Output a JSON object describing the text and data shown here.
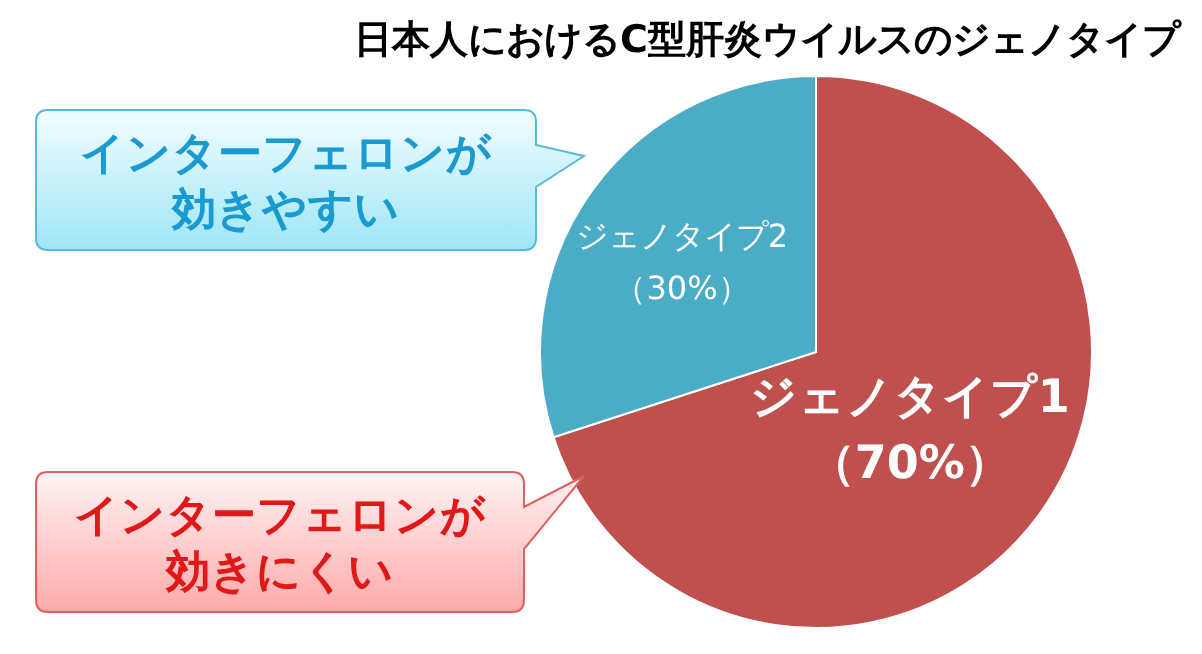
{
  "chart_data": {
    "type": "pie",
    "title": "日本人におけるC型肝炎ウイルスのジェノタイプ",
    "categories": [
      "ジェノタイプ1",
      "ジェノタイプ2"
    ],
    "values": [
      70,
      30
    ],
    "colors": [
      "#c0504d",
      "#4bacc6"
    ],
    "value_labels": [
      "（70%）",
      "（30%）"
    ],
    "annotations": [
      "インターフェロンが効きやすい",
      "インターフェロンが効きにくい"
    ]
  }
}
